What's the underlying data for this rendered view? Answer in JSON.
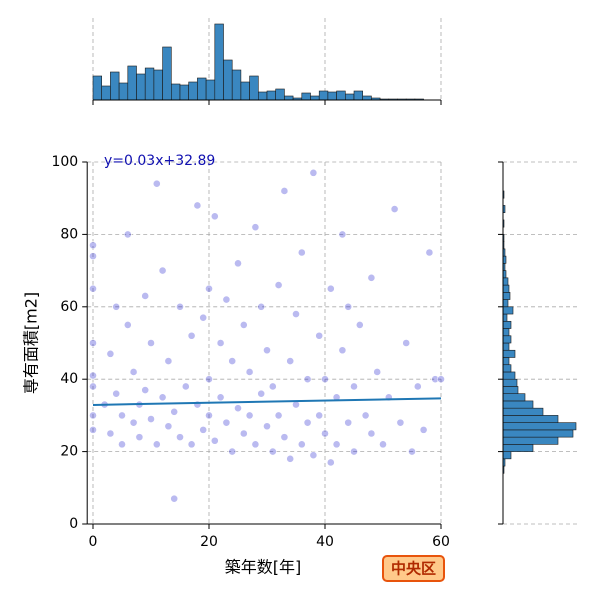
{
  "chart_data": {
    "type": "scatter",
    "xlabel": "築年数[年]",
    "ylabel": "専有面積[m2]",
    "badge": "中央区",
    "xlim": [
      -1,
      60
    ],
    "xticks": [
      0,
      20,
      40,
      60
    ],
    "ylim": [
      0,
      100
    ],
    "yticks": [
      0,
      20,
      40,
      60,
      80,
      100
    ],
    "grid": true,
    "color": "#1a1acc",
    "x": [
      0,
      0,
      0,
      0,
      0,
      0,
      0,
      0,
      2,
      3,
      3,
      4,
      4,
      5,
      5,
      6,
      6,
      7,
      7,
      8,
      8,
      9,
      9,
      10,
      10,
      11,
      11,
      12,
      12,
      13,
      13,
      14,
      14,
      15,
      15,
      16,
      17,
      17,
      18,
      18,
      19,
      19,
      20,
      20,
      20,
      21,
      21,
      22,
      22,
      23,
      23,
      24,
      24,
      25,
      25,
      26,
      26,
      27,
      27,
      28,
      28,
      29,
      29,
      30,
      30,
      31,
      31,
      32,
      32,
      33,
      33,
      34,
      34,
      35,
      35,
      36,
      36,
      37,
      37,
      38,
      38,
      39,
      39,
      40,
      40,
      41,
      41,
      42,
      42,
      43,
      43,
      44,
      44,
      45,
      45,
      46,
      47,
      48,
      48,
      49,
      50,
      51,
      52,
      53,
      54,
      55,
      56,
      57,
      58,
      59,
      60
    ],
    "y": [
      77,
      74,
      65,
      50,
      41,
      38,
      30,
      26,
      33,
      25,
      47,
      60,
      36,
      22,
      30,
      80,
      55,
      28,
      42,
      33,
      24,
      63,
      37,
      29,
      50,
      94,
      22,
      35,
      70,
      27,
      45,
      7,
      31,
      60,
      24,
      38,
      52,
      22,
      33,
      88,
      26,
      57,
      40,
      30,
      65,
      85,
      23,
      35,
      50,
      28,
      62,
      45,
      20,
      32,
      72,
      25,
      55,
      30,
      42,
      82,
      22,
      36,
      60,
      27,
      48,
      20,
      38,
      66,
      30,
      24,
      92,
      45,
      18,
      33,
      58,
      22,
      75,
      40,
      28,
      97,
      19,
      52,
      30,
      25,
      40,
      17,
      65,
      35,
      22,
      80,
      48,
      28,
      60,
      20,
      38,
      55,
      30,
      25,
      68,
      42,
      22,
      35,
      87,
      28,
      50,
      20,
      38,
      26,
      75,
      40,
      40
    ],
    "regression": {
      "label": "y=0.03x+32.89",
      "slope": 0.03,
      "intercept": 32.89,
      "x": [
        0,
        60
      ],
      "color": "#1f77b4"
    },
    "x_hist": {
      "color": "#3a87c0",
      "bins": [
        0,
        1.5,
        3,
        4.5,
        6,
        7.5,
        9,
        10.5,
        12,
        13.5,
        15,
        16.5,
        18,
        19.5,
        21,
        22.5,
        24,
        25.5,
        27,
        28.5,
        30,
        31.5,
        33,
        34.5,
        36,
        37.5,
        39,
        40.5,
        42,
        43.5,
        45,
        46.5,
        48,
        49.5,
        51,
        52.5,
        54,
        55.5,
        57,
        58.5
      ],
      "counts": [
        24,
        14,
        28,
        17,
        34,
        26,
        32,
        30,
        53,
        16,
        15,
        18,
        22,
        20,
        76,
        40,
        30,
        18,
        24,
        8,
        9,
        11,
        4,
        2,
        7,
        4,
        9,
        8,
        9,
        6,
        9,
        4,
        2,
        1,
        1,
        1,
        1,
        1,
        0
      ]
    },
    "y_hist": {
      "color": "#3a87c0",
      "bins": [
        0,
        2,
        4,
        6,
        8,
        10,
        12,
        14,
        16,
        18,
        20,
        22,
        24,
        26,
        28,
        30,
        32,
        34,
        36,
        38,
        40,
        42,
        44,
        46,
        48,
        50,
        52,
        54,
        56,
        58,
        60,
        62,
        64,
        66,
        68,
        70,
        72,
        74,
        76,
        78,
        80,
        82,
        84,
        86,
        88,
        90,
        92,
        94,
        96,
        98,
        100
      ],
      "counts": [
        0,
        0,
        0,
        0,
        0,
        0,
        0,
        1,
        2,
        8,
        30,
        55,
        70,
        73,
        55,
        40,
        30,
        22,
        15,
        14,
        12,
        8,
        6,
        12,
        6,
        8,
        6,
        8,
        4,
        10,
        5,
        7,
        6,
        5,
        3,
        2,
        3,
        2,
        1,
        1,
        0,
        1,
        0,
        2,
        0,
        1,
        0,
        0,
        0,
        0
      ]
    }
  }
}
